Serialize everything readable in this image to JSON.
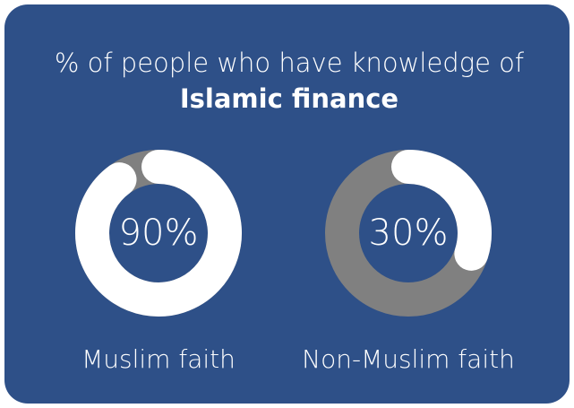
{
  "title": "% of people who have knowledge of",
  "title_bold": "Islamic finance",
  "background": "#2e5088",
  "chart_data": [
    {
      "type": "donut",
      "categories": [
        "Muslim faith"
      ],
      "values": [
        90
      ],
      "value_labels": [
        "90%"
      ],
      "color": "#ffffff",
      "track_color": "#808080"
    },
    {
      "type": "donut",
      "categories": [
        "Non-Muslim faith"
      ],
      "values": [
        30
      ],
      "value_labels": [
        "30%"
      ],
      "color": "#ffffff",
      "track_color": "#808080"
    }
  ]
}
